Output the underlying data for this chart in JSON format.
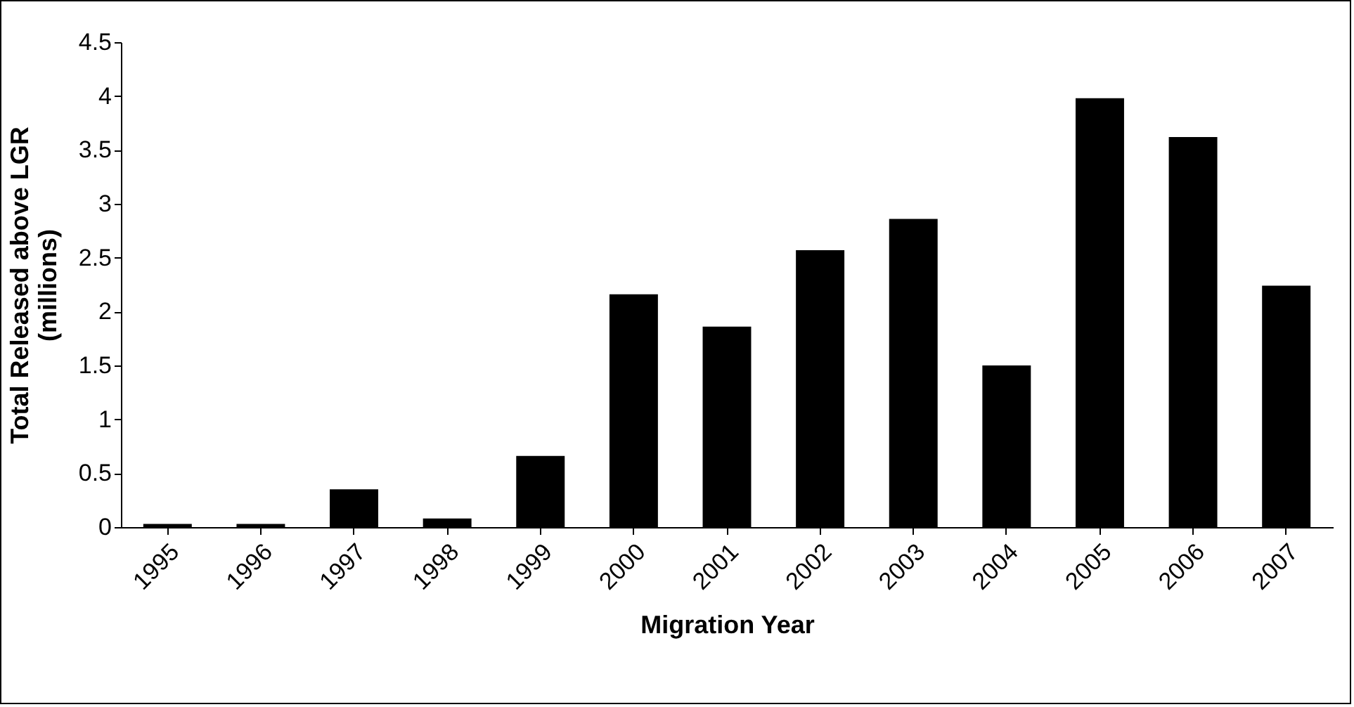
{
  "chart_data": {
    "type": "bar",
    "xlabel": "Migration Year",
    "ylabel": "Total Released above LGR (millions)",
    "categories": [
      "1995",
      "1996",
      "1997",
      "1998",
      "1999",
      "2000",
      "2001",
      "2002",
      "2003",
      "2004",
      "2005",
      "2006",
      "2007"
    ],
    "values": [
      0.03,
      0.03,
      0.35,
      0.08,
      0.66,
      2.16,
      1.86,
      2.57,
      2.86,
      1.5,
      3.98,
      3.62,
      2.24
    ],
    "color": "#000000",
    "ylim": [
      0,
      4.5
    ],
    "yticks": [
      0,
      0.5,
      1,
      1.5,
      2,
      2.5,
      3,
      3.5,
      4,
      4.5
    ],
    "grid": false
  }
}
